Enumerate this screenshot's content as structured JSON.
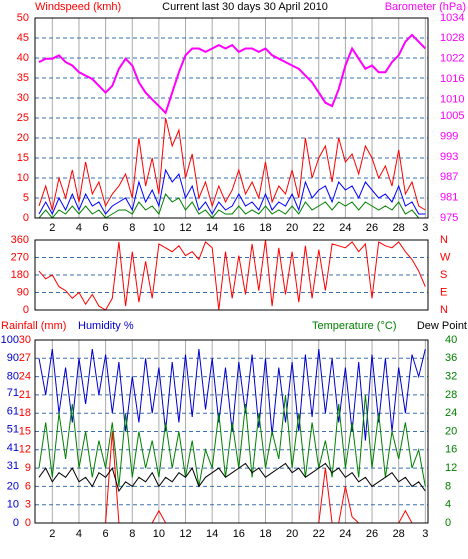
{
  "chart_data": [
    {
      "type": "line",
      "title": "Current last 30 days 30 April 2010",
      "ylabel": "Windspeed (kmh)",
      "x": [
        1,
        1.5,
        2,
        2.5,
        3,
        3.5,
        4,
        4.5,
        5,
        5.5,
        6,
        6.5,
        7,
        7.5,
        8,
        8.5,
        9,
        9.5,
        10,
        10.5,
        11,
        11.5,
        12,
        12.5,
        13,
        13.5,
        14,
        14.5,
        15,
        15.5,
        16,
        16.5,
        17,
        17.5,
        18,
        18.5,
        19,
        19.5,
        20,
        20.5,
        21,
        21.5,
        22,
        22.5,
        23,
        23.5,
        24,
        24.5,
        25,
        25.5,
        26,
        26.5,
        27,
        27.5,
        28,
        28.5,
        29,
        29.5,
        30
      ],
      "xlim": [
        0.7,
        30.2
      ],
      "xticks": [
        2,
        4,
        6,
        8,
        10,
        12,
        14,
        16,
        18,
        20,
        22,
        24,
        26,
        28,
        {
          "value": 30,
          "label": "3"
        }
      ],
      "ylim": [
        0,
        50
      ],
      "yticks": [
        0,
        5,
        10,
        15,
        20,
        25,
        30,
        35,
        40,
        45,
        50
      ],
      "y2lim": [
        975,
        1034
      ],
      "y2ticks": [
        975,
        981,
        987,
        993,
        999,
        1005,
        1010,
        1016,
        1022,
        1028,
        1034
      ],
      "grid": true,
      "series": [
        {
          "color": "#ff0000",
          "values": [
            3,
            8,
            2,
            10,
            5,
            12,
            4,
            14,
            6,
            9,
            3,
            6,
            8,
            11,
            5,
            20,
            8,
            15,
            6,
            25,
            18,
            22,
            10,
            16,
            5,
            9,
            3,
            8,
            4,
            7,
            12,
            6,
            9,
            5,
            14,
            4,
            8,
            6,
            12,
            5,
            20,
            10,
            15,
            18,
            9,
            20,
            14,
            16,
            11,
            18,
            15,
            10,
            13,
            8,
            17,
            6,
            9,
            3,
            2
          ]
        },
        {
          "color": "#0000ff",
          "values": [
            1,
            4,
            1,
            5,
            2,
            6,
            2,
            6,
            3,
            4,
            1,
            3,
            4,
            5,
            2,
            9,
            4,
            7,
            3,
            12,
            9,
            11,
            5,
            8,
            2,
            4,
            1,
            4,
            2,
            3,
            6,
            3,
            4,
            2,
            6,
            2,
            4,
            3,
            6,
            2,
            9,
            5,
            7,
            8,
            4,
            9,
            7,
            8,
            5,
            9,
            7,
            5,
            6,
            4,
            8,
            3,
            4,
            1,
            1
          ]
        },
        {
          "color": "#008000",
          "values": [
            0,
            2,
            0,
            2,
            1,
            3,
            1,
            3,
            1,
            2,
            0,
            1,
            2,
            2,
            1,
            4,
            2,
            3,
            1,
            6,
            4,
            5,
            2,
            4,
            1,
            2,
            0,
            2,
            1,
            1,
            3,
            1,
            2,
            1,
            3,
            1,
            2,
            1,
            3,
            1,
            4,
            2,
            3,
            4,
            2,
            4,
            3,
            4,
            2,
            4,
            3,
            2,
            3,
            2,
            4,
            1,
            2,
            0,
            0
          ]
        },
        {
          "name": "Barometer (hPa)",
          "color": "#ff00ff",
          "axis": "y2",
          "values": [
            1021,
            1022,
            1022,
            1023,
            1021,
            1020,
            1018,
            1017,
            1016,
            1014,
            1012,
            1014,
            1019,
            1022,
            1020,
            1015,
            1012,
            1010,
            1008,
            1006,
            1012,
            1018,
            1023,
            1025,
            1025,
            1024,
            1025,
            1026,
            1025,
            1026,
            1024,
            1025,
            1025,
            1024,
            1025,
            1023,
            1022,
            1021,
            1020,
            1019,
            1017,
            1015,
            1012,
            1009,
            1008,
            1013,
            1020,
            1025,
            1022,
            1019,
            1020,
            1018,
            1018,
            1021,
            1023,
            1027,
            1029,
            1027,
            1025
          ]
        }
      ]
    },
    {
      "type": "line",
      "x": [
        1,
        1.5,
        2,
        2.5,
        3,
        3.5,
        4,
        4.5,
        5,
        5.5,
        6,
        6.5,
        7,
        7.5,
        8,
        8.5,
        9,
        9.5,
        10,
        10.5,
        11,
        11.5,
        12,
        12.5,
        13,
        13.5,
        14,
        14.5,
        15,
        15.5,
        16,
        16.5,
        17,
        17.5,
        18,
        18.5,
        19,
        19.5,
        20,
        20.5,
        21,
        21.5,
        22,
        22.5,
        23,
        23.5,
        24,
        24.5,
        25,
        25.5,
        26,
        26.5,
        27,
        27.5,
        28,
        28.5,
        29,
        29.5,
        30
      ],
      "xlim": [
        0.7,
        30.2
      ],
      "ylim": [
        0,
        360
      ],
      "yticks": [
        0,
        90,
        180,
        270,
        360
      ],
      "y2lim": [
        0,
        360
      ],
      "y2ticks": [
        {
          "value": 0,
          "label": "N"
        },
        {
          "value": 90,
          "label": "E"
        },
        {
          "value": 180,
          "label": "S"
        },
        {
          "value": 270,
          "label": "W"
        },
        {
          "value": 360,
          "label": "N"
        }
      ],
      "grid": true,
      "series": [
        {
          "color": "#ff0000",
          "values": [
            200,
            160,
            180,
            120,
            100,
            60,
            90,
            30,
            80,
            20,
            0,
            60,
            350,
            20,
            300,
            40,
            250,
            60,
            340,
            320,
            300,
            330,
            280,
            300,
            260,
            350,
            320,
            0,
            300,
            60,
            280,
            80,
            340,
            100,
            360,
            20,
            320,
            80,
            300,
            40,
            330,
            60,
            310,
            100,
            340,
            330,
            320,
            350,
            300,
            340,
            60,
            350,
            330,
            320,
            350,
            300,
            260,
            200,
            120
          ]
        }
      ]
    },
    {
      "type": "line",
      "x": [
        1,
        1.5,
        2,
        2.5,
        3,
        3.5,
        4,
        4.5,
        5,
        5.5,
        6,
        6.5,
        7,
        7.5,
        8,
        8.5,
        9,
        9.5,
        10,
        10.5,
        11,
        11.5,
        12,
        12.5,
        13,
        13.5,
        14,
        14.5,
        15,
        15.5,
        16,
        16.5,
        17,
        17.5,
        18,
        18.5,
        19,
        19.5,
        20,
        20.5,
        21,
        21.5,
        22,
        22.5,
        23,
        23.5,
        24,
        24.5,
        25,
        25.5,
        26,
        26.5,
        27,
        27.5,
        28,
        28.5,
        29,
        29.5,
        30
      ],
      "xlim": [
        0.7,
        30.2
      ],
      "xticks": [
        2,
        4,
        6,
        8,
        10,
        12,
        14,
        16,
        18,
        20,
        22,
        24,
        26,
        28,
        {
          "value": 30,
          "label": "3"
        }
      ],
      "ylim": [
        0,
        30
      ],
      "yticks": [
        0,
        3,
        6,
        9,
        12,
        15,
        18,
        21,
        24,
        27,
        30
      ],
      "y3lim": [
        0,
        100
      ],
      "y3ticks": [
        0,
        10,
        20,
        31,
        41,
        51,
        61,
        71,
        80,
        90,
        100
      ],
      "y2lim": [
        0,
        40
      ],
      "y2ticks": [
        0,
        4,
        8,
        12,
        16,
        20,
        24,
        28,
        32,
        36,
        40
      ],
      "grid": true,
      "series": [
        {
          "name": "Rainfall (mm)",
          "color": "#ff0000",
          "values": [
            0,
            0,
            0,
            0,
            0,
            0,
            0,
            0,
            0,
            0,
            0,
            15,
            0,
            0,
            0,
            0,
            0,
            0,
            2,
            0,
            0,
            0,
            0,
            0,
            0,
            0,
            0,
            0,
            0,
            0,
            0,
            0,
            0,
            0,
            0,
            0,
            0,
            0,
            0,
            0,
            0,
            0,
            0,
            9,
            0,
            0,
            6,
            1,
            0,
            0,
            0,
            0,
            0,
            0,
            0,
            2,
            0,
            0,
            0
          ]
        },
        {
          "name": "Humidity %",
          "color": "#0000cc",
          "axis": "y3",
          "values": [
            90,
            70,
            95,
            60,
            85,
            55,
            90,
            65,
            95,
            70,
            92,
            60,
            88,
            50,
            80,
            55,
            90,
            60,
            85,
            50,
            88,
            55,
            92,
            58,
            95,
            62,
            90,
            55,
            85,
            50,
            88,
            60,
            92,
            52,
            90,
            48,
            85,
            55,
            88,
            50,
            92,
            58,
            95,
            60,
            90,
            55,
            85,
            50,
            88,
            45,
            92,
            55,
            90,
            50,
            85,
            60,
            92,
            80,
            95
          ]
        },
        {
          "name": "Temperature (°C)",
          "color": "#008000",
          "axis": "y2",
          "values": [
            12,
            22,
            10,
            24,
            14,
            26,
            12,
            20,
            10,
            18,
            12,
            22,
            8,
            24,
            10,
            20,
            12,
            18,
            10,
            22,
            12,
            20,
            10,
            18,
            8,
            16,
            12,
            24,
            10,
            22,
            12,
            26,
            10,
            24,
            12,
            20,
            14,
            28,
            12,
            24,
            10,
            22,
            12,
            18,
            10,
            26,
            12,
            22,
            10,
            28,
            12,
            24,
            10,
            20,
            14,
            22,
            12,
            16,
            8
          ]
        },
        {
          "name": "Dew Point",
          "color": "#000000",
          "axis": "y2",
          "values": [
            10,
            12,
            9,
            11,
            10,
            12,
            9,
            10,
            8,
            11,
            10,
            12,
            7,
            9,
            8,
            10,
            9,
            11,
            8,
            10,
            9,
            11,
            10,
            12,
            8,
            10,
            11,
            12,
            10,
            11,
            12,
            13,
            11,
            12,
            10,
            11,
            12,
            13,
            11,
            12,
            10,
            11,
            12,
            13,
            11,
            12,
            10,
            11,
            9,
            10,
            8,
            9,
            10,
            11,
            9,
            10,
            8,
            9,
            7
          ]
        }
      ]
    }
  ]
}
